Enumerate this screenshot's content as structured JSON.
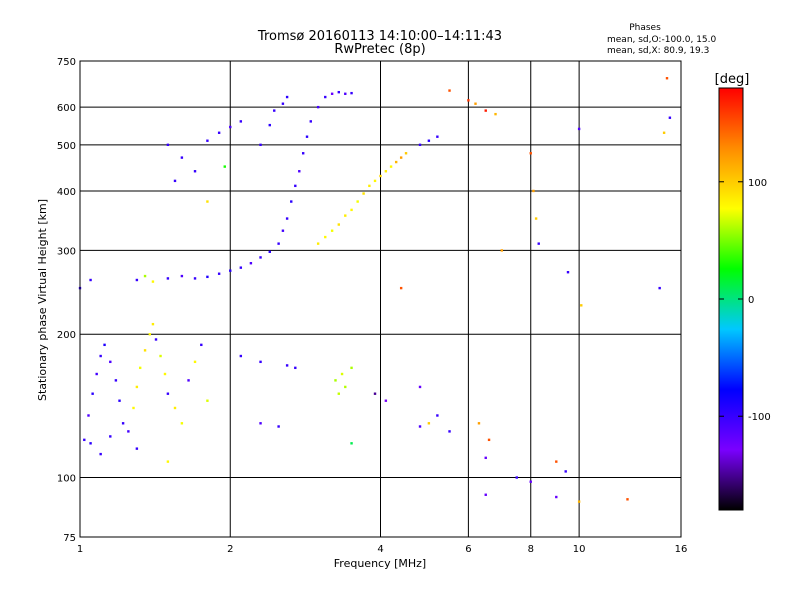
{
  "chart_data": {
    "type": "scatter",
    "title": "Tromsø 20160113 14:10:00–14:11:43",
    "subtitle": "RwPretec (8p)",
    "xlabel": "Frequency [MHz]",
    "ylabel": "Stationary phase Virtual Height [km]",
    "x_scale": "log",
    "y_scale": "log",
    "xlim": [
      1,
      16
    ],
    "ylim": [
      75,
      750
    ],
    "x_ticks": [
      1,
      2,
      4,
      6,
      8,
      10,
      16
    ],
    "x_tick_labels": [
      "1",
      "2",
      "4",
      "6",
      "8",
      "10",
      "16"
    ],
    "y_ticks": [
      75,
      100,
      200,
      300,
      400,
      500,
      600,
      750
    ],
    "y_tick_labels": [
      "75",
      "100",
      "200",
      "300",
      "400",
      "500",
      "600",
      "750"
    ],
    "grid": true,
    "phase_box": {
      "heading": "Phases",
      "line_o": "mean, sd,O:-100.0, 15.0",
      "line_x": "mean, sd,X:  80.9, 19.3"
    },
    "colorbar": {
      "label": "[deg]",
      "range": [
        -180,
        180
      ],
      "ticks": [
        100,
        0,
        -100
      ],
      "tick_labels": [
        "100",
        "0",
        "-100"
      ],
      "colors": [
        "#000000",
        "#7a00ff",
        "#0000ff",
        "#00c8ff",
        "#00ff00",
        "#ffff00",
        "#ff8c00",
        "#ff0000"
      ]
    },
    "series": [
      {
        "points": [
          [
            1.02,
            120,
            -100
          ],
          [
            1.04,
            135,
            -110
          ],
          [
            1.06,
            150,
            -95
          ],
          [
            1.08,
            165,
            -105
          ],
          [
            1.1,
            180,
            -100
          ],
          [
            1.12,
            190,
            -90
          ],
          [
            1.15,
            175,
            -110
          ],
          [
            1.18,
            160,
            -100
          ],
          [
            1.2,
            145,
            -95
          ],
          [
            1.22,
            130,
            -100
          ],
          [
            1.25,
            125,
            -105
          ],
          [
            1.28,
            140,
            80
          ],
          [
            1.3,
            155,
            85
          ],
          [
            1.32,
            170,
            75
          ],
          [
            1.35,
            185,
            90
          ],
          [
            1.38,
            200,
            80
          ],
          [
            1.4,
            210,
            85
          ],
          [
            1.42,
            195,
            -100
          ],
          [
            1.45,
            180,
            70
          ],
          [
            1.48,
            165,
            80
          ],
          [
            1.5,
            150,
            -100
          ],
          [
            1.55,
            140,
            85
          ],
          [
            1.6,
            130,
            75
          ],
          [
            1.65,
            160,
            -110
          ],
          [
            1.7,
            175,
            80
          ],
          [
            1.75,
            190,
            -100
          ],
          [
            1.8,
            145,
            70
          ],
          [
            1.3,
            260,
            -100
          ],
          [
            1.35,
            265,
            60
          ],
          [
            1.4,
            258,
            80
          ],
          [
            1.5,
            262,
            -100
          ],
          [
            1.6,
            265,
            -110
          ],
          [
            1.7,
            262,
            -100
          ],
          [
            1.8,
            264,
            -90
          ],
          [
            1.9,
            268,
            -100
          ],
          [
            2.0,
            272,
            -95
          ],
          [
            2.1,
            276,
            -100
          ],
          [
            2.2,
            282,
            -110
          ],
          [
            2.3,
            290,
            -100
          ],
          [
            2.4,
            298,
            -95
          ],
          [
            2.5,
            310,
            -100
          ],
          [
            2.55,
            330,
            -105
          ],
          [
            2.6,
            350,
            -100
          ],
          [
            2.65,
            380,
            -95
          ],
          [
            2.7,
            410,
            -100
          ],
          [
            2.75,
            440,
            -110
          ],
          [
            2.8,
            480,
            -100
          ],
          [
            2.85,
            520,
            -95
          ],
          [
            2.9,
            560,
            -100
          ],
          [
            3.0,
            600,
            -105
          ],
          [
            3.1,
            630,
            -100
          ],
          [
            3.2,
            640,
            -120
          ],
          [
            3.3,
            645,
            -100
          ],
          [
            3.4,
            640,
            -110
          ],
          [
            3.5,
            642,
            -100
          ],
          [
            2.3,
            500,
            -100
          ],
          [
            2.4,
            550,
            -95
          ],
          [
            2.45,
            590,
            -100
          ],
          [
            2.55,
            610,
            -100
          ],
          [
            2.6,
            630,
            -95
          ],
          [
            1.9,
            530,
            -100
          ],
          [
            2.0,
            545,
            -110
          ],
          [
            2.1,
            560,
            -100
          ],
          [
            1.8,
            510,
            -100
          ],
          [
            3.0,
            310,
            85
          ],
          [
            3.1,
            320,
            80
          ],
          [
            3.2,
            330,
            75
          ],
          [
            3.3,
            340,
            90
          ],
          [
            3.4,
            355,
            85
          ],
          [
            3.5,
            365,
            80
          ],
          [
            3.6,
            380,
            75
          ],
          [
            3.7,
            395,
            90
          ],
          [
            3.8,
            410,
            85
          ],
          [
            3.9,
            420,
            80
          ],
          [
            4.0,
            430,
            95
          ],
          [
            4.1,
            440,
            85
          ],
          [
            4.2,
            450,
            80
          ],
          [
            4.3,
            460,
            110
          ],
          [
            4.4,
            470,
            120
          ],
          [
            4.5,
            480,
            100
          ],
          [
            3.25,
            160,
            60
          ],
          [
            3.3,
            150,
            65
          ],
          [
            3.35,
            165,
            70
          ],
          [
            3.4,
            155,
            62
          ],
          [
            3.5,
            170,
            60
          ],
          [
            4.4,
            250,
            150
          ],
          [
            4.8,
            500,
            -100
          ],
          [
            5.0,
            510,
            -95
          ],
          [
            5.2,
            520,
            -100
          ],
          [
            5.5,
            650,
            150
          ],
          [
            6.0,
            620,
            160
          ],
          [
            6.2,
            610,
            120
          ],
          [
            6.5,
            590,
            170
          ],
          [
            6.8,
            580,
            110
          ],
          [
            7.0,
            300,
            120
          ],
          [
            8.0,
            480,
            150
          ],
          [
            8.1,
            400,
            120
          ],
          [
            8.2,
            350,
            100
          ],
          [
            8.3,
            310,
            -100
          ],
          [
            9.5,
            270,
            -100
          ],
          [
            10.0,
            540,
            -110
          ],
          [
            10.1,
            230,
            100
          ],
          [
            12.5,
            90,
            150
          ],
          [
            14.5,
            250,
            -100
          ],
          [
            15.0,
            690,
            150
          ],
          [
            15.2,
            570,
            -100
          ],
          [
            14.8,
            530,
            100
          ],
          [
            6.3,
            130,
            120
          ],
          [
            6.5,
            110,
            -120
          ],
          [
            6.6,
            120,
            150
          ],
          [
            9.0,
            108,
            150
          ],
          [
            9.4,
            103,
            -100
          ],
          [
            9.0,
            91,
            -120
          ],
          [
            10.0,
            89,
            110
          ],
          [
            6.5,
            92,
            -120
          ],
          [
            5.5,
            125,
            -100
          ],
          [
            4.8,
            155,
            -120
          ],
          [
            3.9,
            150,
            -150
          ],
          [
            4.1,
            145,
            -130
          ],
          [
            2.1,
            180,
            -100
          ],
          [
            2.3,
            175,
            -100
          ],
          [
            2.6,
            172,
            -100
          ],
          [
            2.7,
            170,
            -100
          ],
          [
            2.3,
            130,
            -110
          ],
          [
            2.5,
            128,
            -100
          ],
          [
            3.5,
            118,
            10
          ],
          [
            5.0,
            130,
            100
          ],
          [
            5.2,
            135,
            -100
          ],
          [
            4.8,
            128,
            -110
          ],
          [
            7.5,
            100,
            -100
          ],
          [
            8.0,
            98,
            -120
          ],
          [
            1.95,
            450,
            30
          ],
          [
            1.8,
            380,
            90
          ],
          [
            1.7,
            440,
            -100
          ],
          [
            1.6,
            470,
            -100
          ],
          [
            1.5,
            500,
            -100
          ],
          [
            1.55,
            420,
            -100
          ],
          [
            1.3,
            115,
            -100
          ],
          [
            1.5,
            108,
            80
          ],
          [
            1.1,
            112,
            -100
          ],
          [
            1.05,
            118,
            -95
          ],
          [
            1.15,
            122,
            -100
          ],
          [
            1.0,
            250,
            -100
          ],
          [
            1.05,
            260,
            -100
          ]
        ]
      }
    ]
  }
}
